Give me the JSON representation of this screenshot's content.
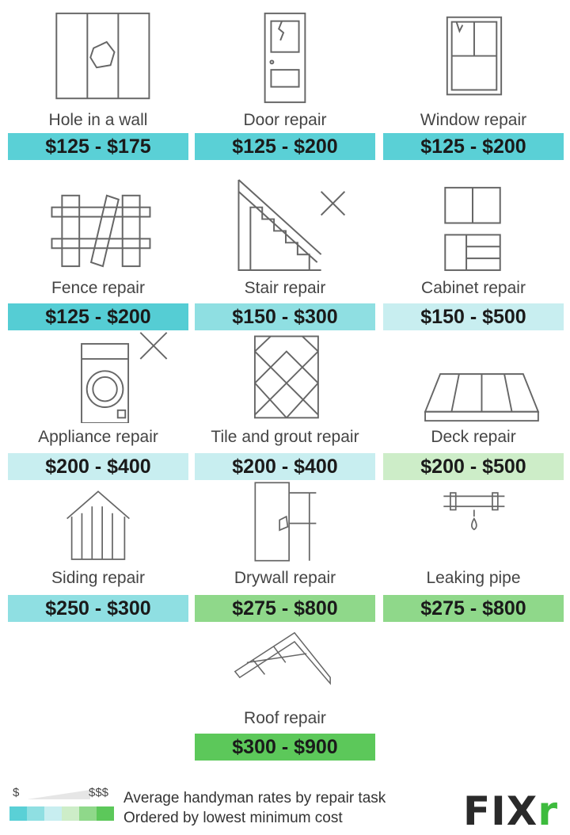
{
  "colors": {
    "c1": "#5ad0d6",
    "c2": "#8fdfe2",
    "c3": "#c8eef0",
    "c4": "#cdedc8",
    "c5": "#8fd88a",
    "c6": "#5cc85a"
  },
  "items": [
    {
      "label": "Hole in a wall",
      "range": "$125 - $175",
      "color": "#5ad0d6",
      "icon": "broken-wall-icon"
    },
    {
      "label": "Door repair",
      "range": "$125 - $200",
      "color": "#5ad0d6",
      "icon": "door-icon"
    },
    {
      "label": "Window repair",
      "range": "$125 - $200",
      "color": "#5ad0d6",
      "icon": "window-icon"
    },
    {
      "label": "Fence repair",
      "range": "$125 - $200",
      "color": "#55cdd4",
      "icon": "fence-icon"
    },
    {
      "label": "Stair repair",
      "range": "$150 - $300",
      "color": "#8fdfe2",
      "icon": "stairs-icon"
    },
    {
      "label": "Cabinet repair",
      "range": "$150 - $500",
      "color": "#c8eef0",
      "icon": "cabinet-icon"
    },
    {
      "label": "Appliance repair",
      "range": "$200 - $400",
      "color": "#c8eef0",
      "icon": "washing-machine-icon"
    },
    {
      "label": "Tile and grout repair",
      "range": "$200 - $400",
      "color": "#c8eef0",
      "icon": "tile-icon"
    },
    {
      "label": "Deck repair",
      "range": "$200 - $500",
      "color": "#cdedc8",
      "icon": "deck-icon"
    },
    {
      "label": "Siding repair",
      "range": "$250 - $300",
      "color": "#8fdfe2",
      "icon": "siding-icon"
    },
    {
      "label": "Drywall repair",
      "range": "$275 - $800",
      "color": "#8fd88a",
      "icon": "drywall-icon"
    },
    {
      "label": "Leaking pipe",
      "range": "$275 - $800",
      "color": "#8fd88a",
      "icon": "pipe-icon"
    },
    {
      "label": "Roof repair",
      "range": "$300 - $900",
      "color": "#5cc85a",
      "icon": "roof-icon"
    }
  ],
  "legend": {
    "low": "$",
    "high": "$$$",
    "line1": "Average handyman rates by repair task",
    "line2": "Ordered by lowest minimum cost",
    "swatches": [
      "#5ad0d6",
      "#8fdfe2",
      "#c8eef0",
      "#cdedc8",
      "#8fd88a",
      "#5cc85a"
    ]
  },
  "logo": {
    "text_main": "FIX",
    "text_accent": "r",
    "accent_color": "#3dbb3d"
  }
}
